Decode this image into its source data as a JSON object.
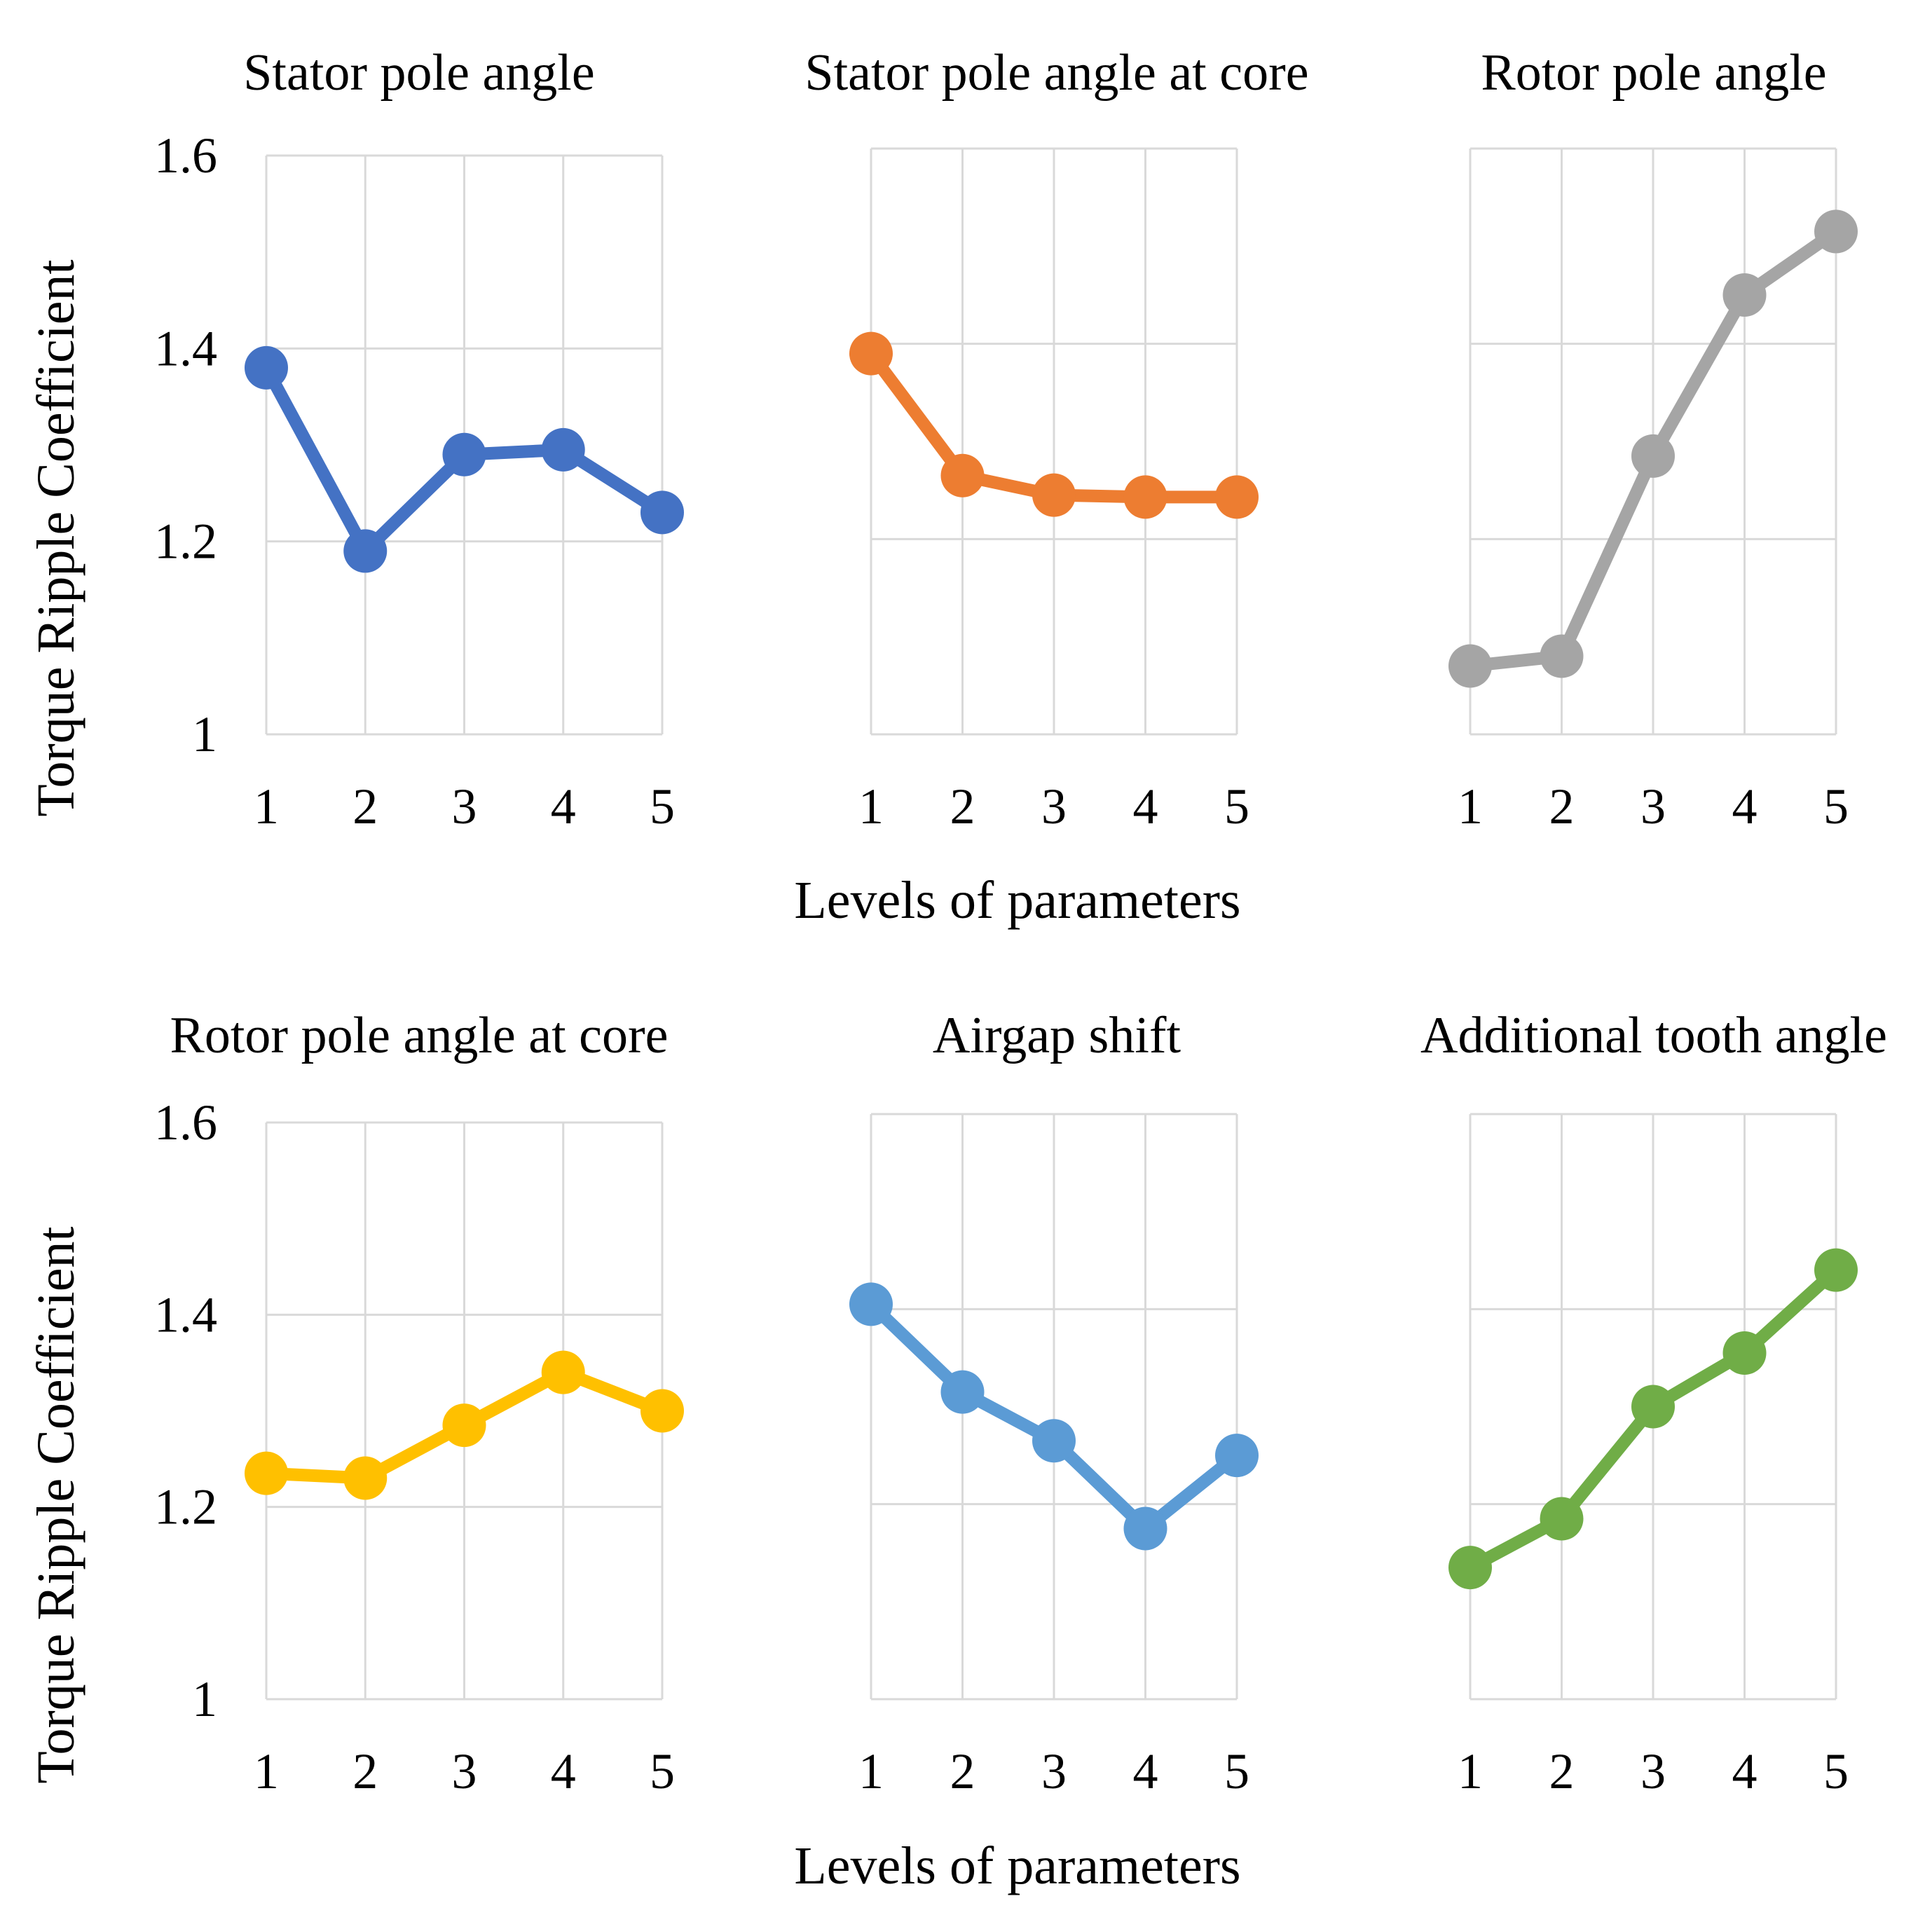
{
  "figure": {
    "ylabel": "Torque Ripple Coefficient",
    "xlabel": "Levels of parameters"
  },
  "chart_data": [
    {
      "type": "line",
      "title": "Stator pole angle",
      "categories": [
        "1",
        "2",
        "3",
        "4",
        "5"
      ],
      "series": [
        {
          "name": "Stator pole angle",
          "values": [
            1.38,
            1.19,
            1.29,
            1.295,
            1.23
          ]
        }
      ],
      "ylim": [
        1,
        1.6
      ],
      "yticks": [
        1,
        1.2,
        1.4,
        1.6
      ],
      "ytick_labels": [
        "1",
        "1.2",
        "1.4",
        "1.6"
      ],
      "color": "#4472c4",
      "grid": true
    },
    {
      "type": "line",
      "title": "Stator pole angle at core",
      "categories": [
        "1",
        "2",
        "3",
        "4",
        "5"
      ],
      "series": [
        {
          "name": "Stator pole angle at core",
          "values": [
            1.39,
            1.265,
            1.245,
            1.243,
            1.243
          ]
        }
      ],
      "ylim": [
        1,
        1.6
      ],
      "yticks": [
        1,
        1.2,
        1.4,
        1.6
      ],
      "ytick_labels": [],
      "color": "#ed7d31",
      "grid": true
    },
    {
      "type": "line",
      "title": "Rotor pole angle",
      "categories": [
        "1",
        "2",
        "3",
        "4",
        "5"
      ],
      "series": [
        {
          "name": "Rotor pole angle",
          "values": [
            1.07,
            1.08,
            1.285,
            1.45,
            1.515
          ]
        }
      ],
      "ylim": [
        1,
        1.6
      ],
      "yticks": [
        1,
        1.2,
        1.4,
        1.6
      ],
      "ytick_labels": [],
      "color": "#a5a5a5",
      "grid": true
    },
    {
      "type": "line",
      "title": "Rotor pole angle at core",
      "categories": [
        "1",
        "2",
        "3",
        "4",
        "5"
      ],
      "series": [
        {
          "name": "Rotor pole angle at core",
          "values": [
            1.235,
            1.23,
            1.285,
            1.34,
            1.3
          ]
        }
      ],
      "ylim": [
        1,
        1.6
      ],
      "yticks": [
        1,
        1.2,
        1.4,
        1.6
      ],
      "ytick_labels": [
        "1",
        "1.2",
        "1.4",
        "1.6"
      ],
      "color": "#ffc000",
      "grid": true
    },
    {
      "type": "line",
      "title": "Airgap shift",
      "categories": [
        "1",
        "2",
        "3",
        "4",
        "5"
      ],
      "series": [
        {
          "name": "Airgap shift",
          "values": [
            1.405,
            1.315,
            1.265,
            1.175,
            1.25
          ]
        }
      ],
      "ylim": [
        1,
        1.6
      ],
      "yticks": [
        1,
        1.2,
        1.4,
        1.6
      ],
      "ytick_labels": [],
      "color": "#5b9bd5",
      "grid": true
    },
    {
      "type": "line",
      "title": "Additional tooth angle",
      "categories": [
        "1",
        "2",
        "3",
        "4",
        "5"
      ],
      "series": [
        {
          "name": "Additional tooth angle",
          "values": [
            1.135,
            1.185,
            1.3,
            1.355,
            1.44
          ]
        }
      ],
      "ylim": [
        1,
        1.6
      ],
      "yticks": [
        1,
        1.2,
        1.4,
        1.6
      ],
      "ytick_labels": [],
      "color": "#70ad47",
      "grid": true
    }
  ]
}
